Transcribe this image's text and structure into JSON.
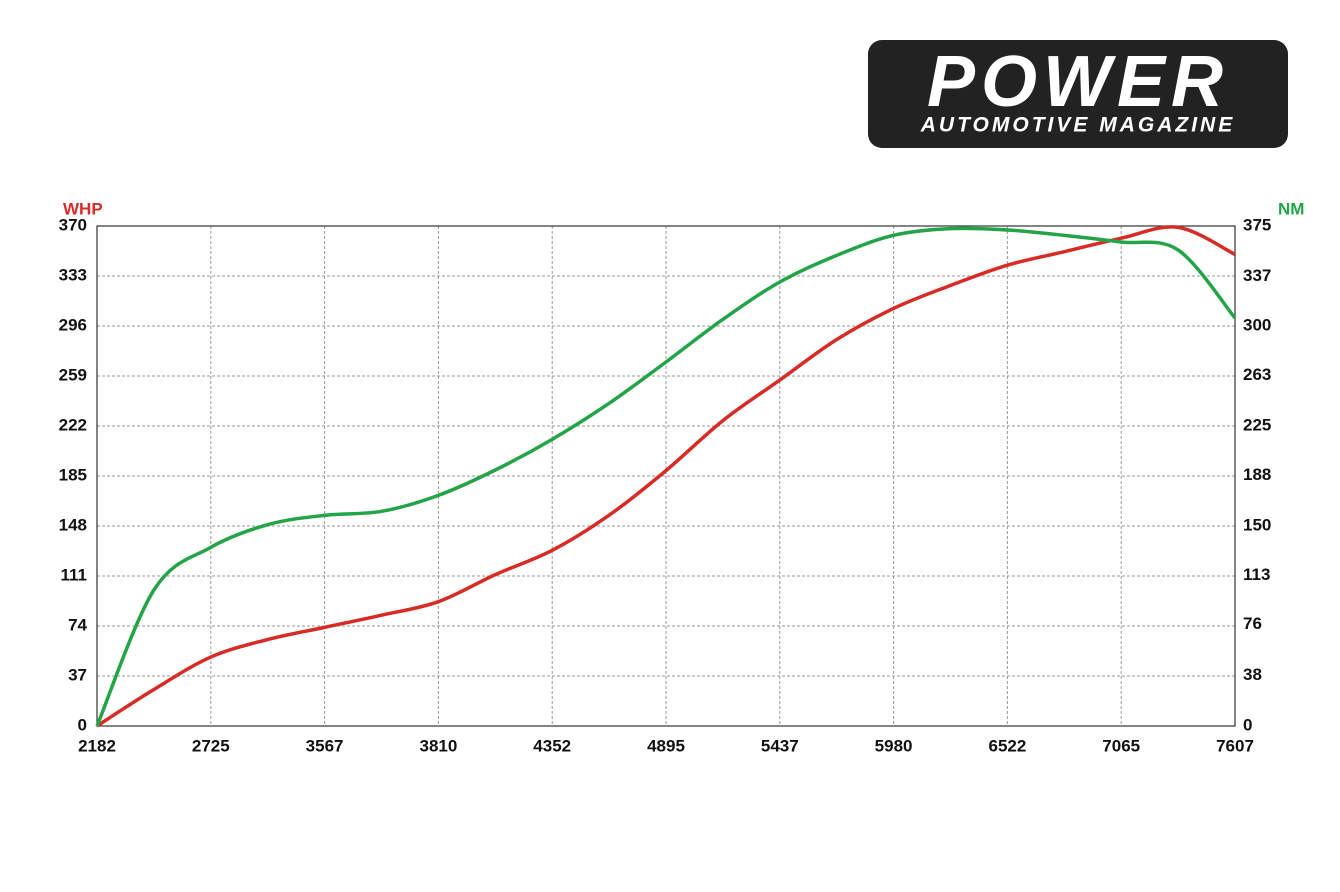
{
  "brand": {
    "name": "POWER",
    "tagline": "AUTOMOTIVE MAGAZINE"
  },
  "chart_data": {
    "type": "line",
    "y_label": "WHP",
    "y2_label": "NM",
    "categories": [
      "2182",
      null,
      "2725",
      null,
      "3567",
      null,
      "3810",
      null,
      "4352",
      null,
      "4895",
      null,
      "5437",
      null,
      "5980",
      null,
      "6522",
      null,
      "7065",
      null,
      "7607"
    ],
    "ylim": [
      0,
      370
    ],
    "yticks": [
      0,
      37,
      74,
      111,
      148,
      185,
      222,
      259,
      296,
      333,
      370
    ],
    "y2lim": [
      0,
      375
    ],
    "y2ticks": [
      0,
      38,
      76,
      113,
      150,
      188,
      225,
      263,
      300,
      337,
      375
    ],
    "grid": true,
    "series": [
      {
        "name": "WHP",
        "color": "#d92b25",
        "values": [
          0,
          27,
          51,
          64,
          73,
          82,
          92,
          112,
          130,
          156,
          189,
          226,
          256,
          286,
          309,
          326,
          341,
          351,
          361,
          369,
          349
        ]
      },
      {
        "name": "NM",
        "color": "#22a447",
        "axis": "y2",
        "values": [
          0,
          102,
          134,
          151,
          158,
          161,
          173,
          192,
          215,
          242,
          273,
          305,
          333,
          353,
          368,
          373,
          372,
          368,
          363,
          357,
          306
        ]
      }
    ]
  }
}
